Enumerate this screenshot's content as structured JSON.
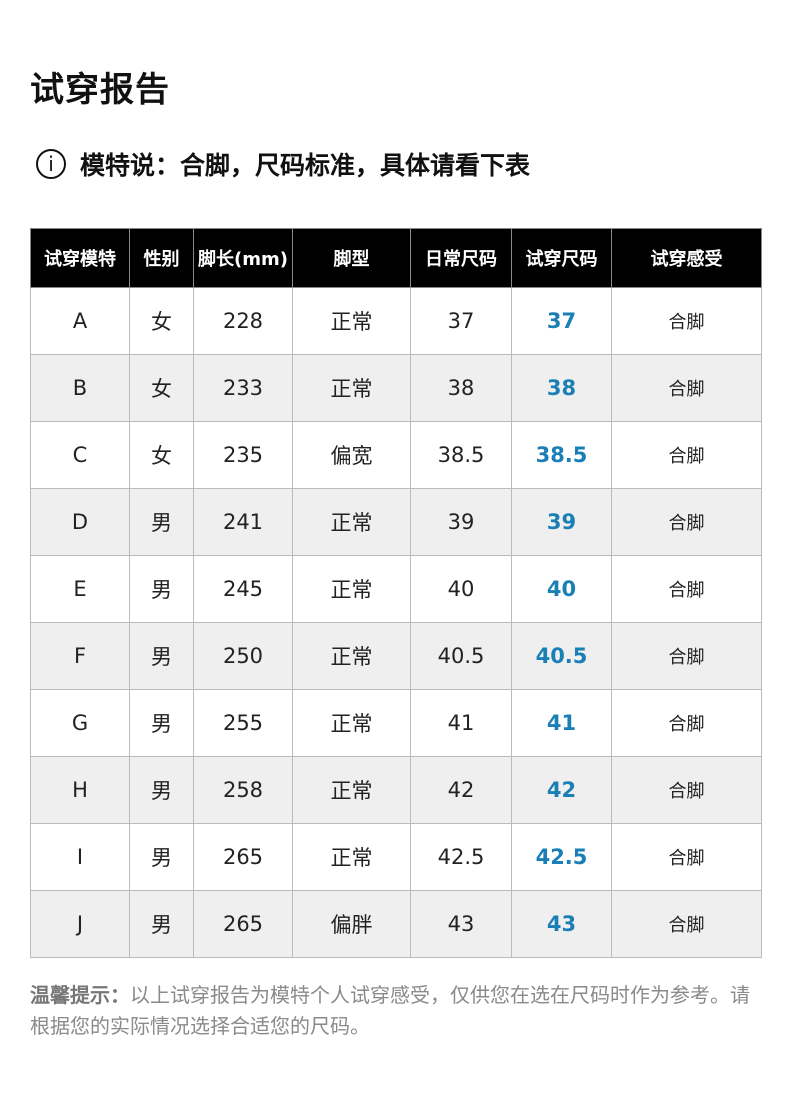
{
  "title": "试穿报告",
  "note": {
    "icon": "info-icon",
    "text": "模特说：合脚，尺码标准，具体请看下表"
  },
  "table": {
    "headers": [
      "试穿模特",
      "性别",
      "脚长(mm)",
      "脚型",
      "日常尺码",
      "试穿尺码",
      "试穿感受"
    ],
    "rows": [
      [
        "A",
        "女",
        "228",
        "正常",
        "37",
        "37",
        "合脚"
      ],
      [
        "B",
        "女",
        "233",
        "正常",
        "38",
        "38",
        "合脚"
      ],
      [
        "C",
        "女",
        "235",
        "偏宽",
        "38.5",
        "38.5",
        "合脚"
      ],
      [
        "D",
        "男",
        "241",
        "正常",
        "39",
        "39",
        "合脚"
      ],
      [
        "E",
        "男",
        "245",
        "正常",
        "40",
        "40",
        "合脚"
      ],
      [
        "F",
        "男",
        "250",
        "正常",
        "40.5",
        "40.5",
        "合脚"
      ],
      [
        "G",
        "男",
        "255",
        "正常",
        "41",
        "41",
        "合脚"
      ],
      [
        "H",
        "男",
        "258",
        "正常",
        "42",
        "42",
        "合脚"
      ],
      [
        "I",
        "男",
        "265",
        "正常",
        "42.5",
        "42.5",
        "合脚"
      ],
      [
        "J",
        "男",
        "265",
        "偏胖",
        "43",
        "43",
        "合脚"
      ]
    ]
  },
  "tip": {
    "label": "温馨提示：",
    "text": "以上试穿报告为模特个人试穿感受，仅供您在选在尺码时作为参考。请根据您的实际情况选择合适您的尺码。"
  },
  "colors": {
    "accent": "#1a7fb5",
    "header_bg": "#000000",
    "alt_row": "#efefef"
  }
}
